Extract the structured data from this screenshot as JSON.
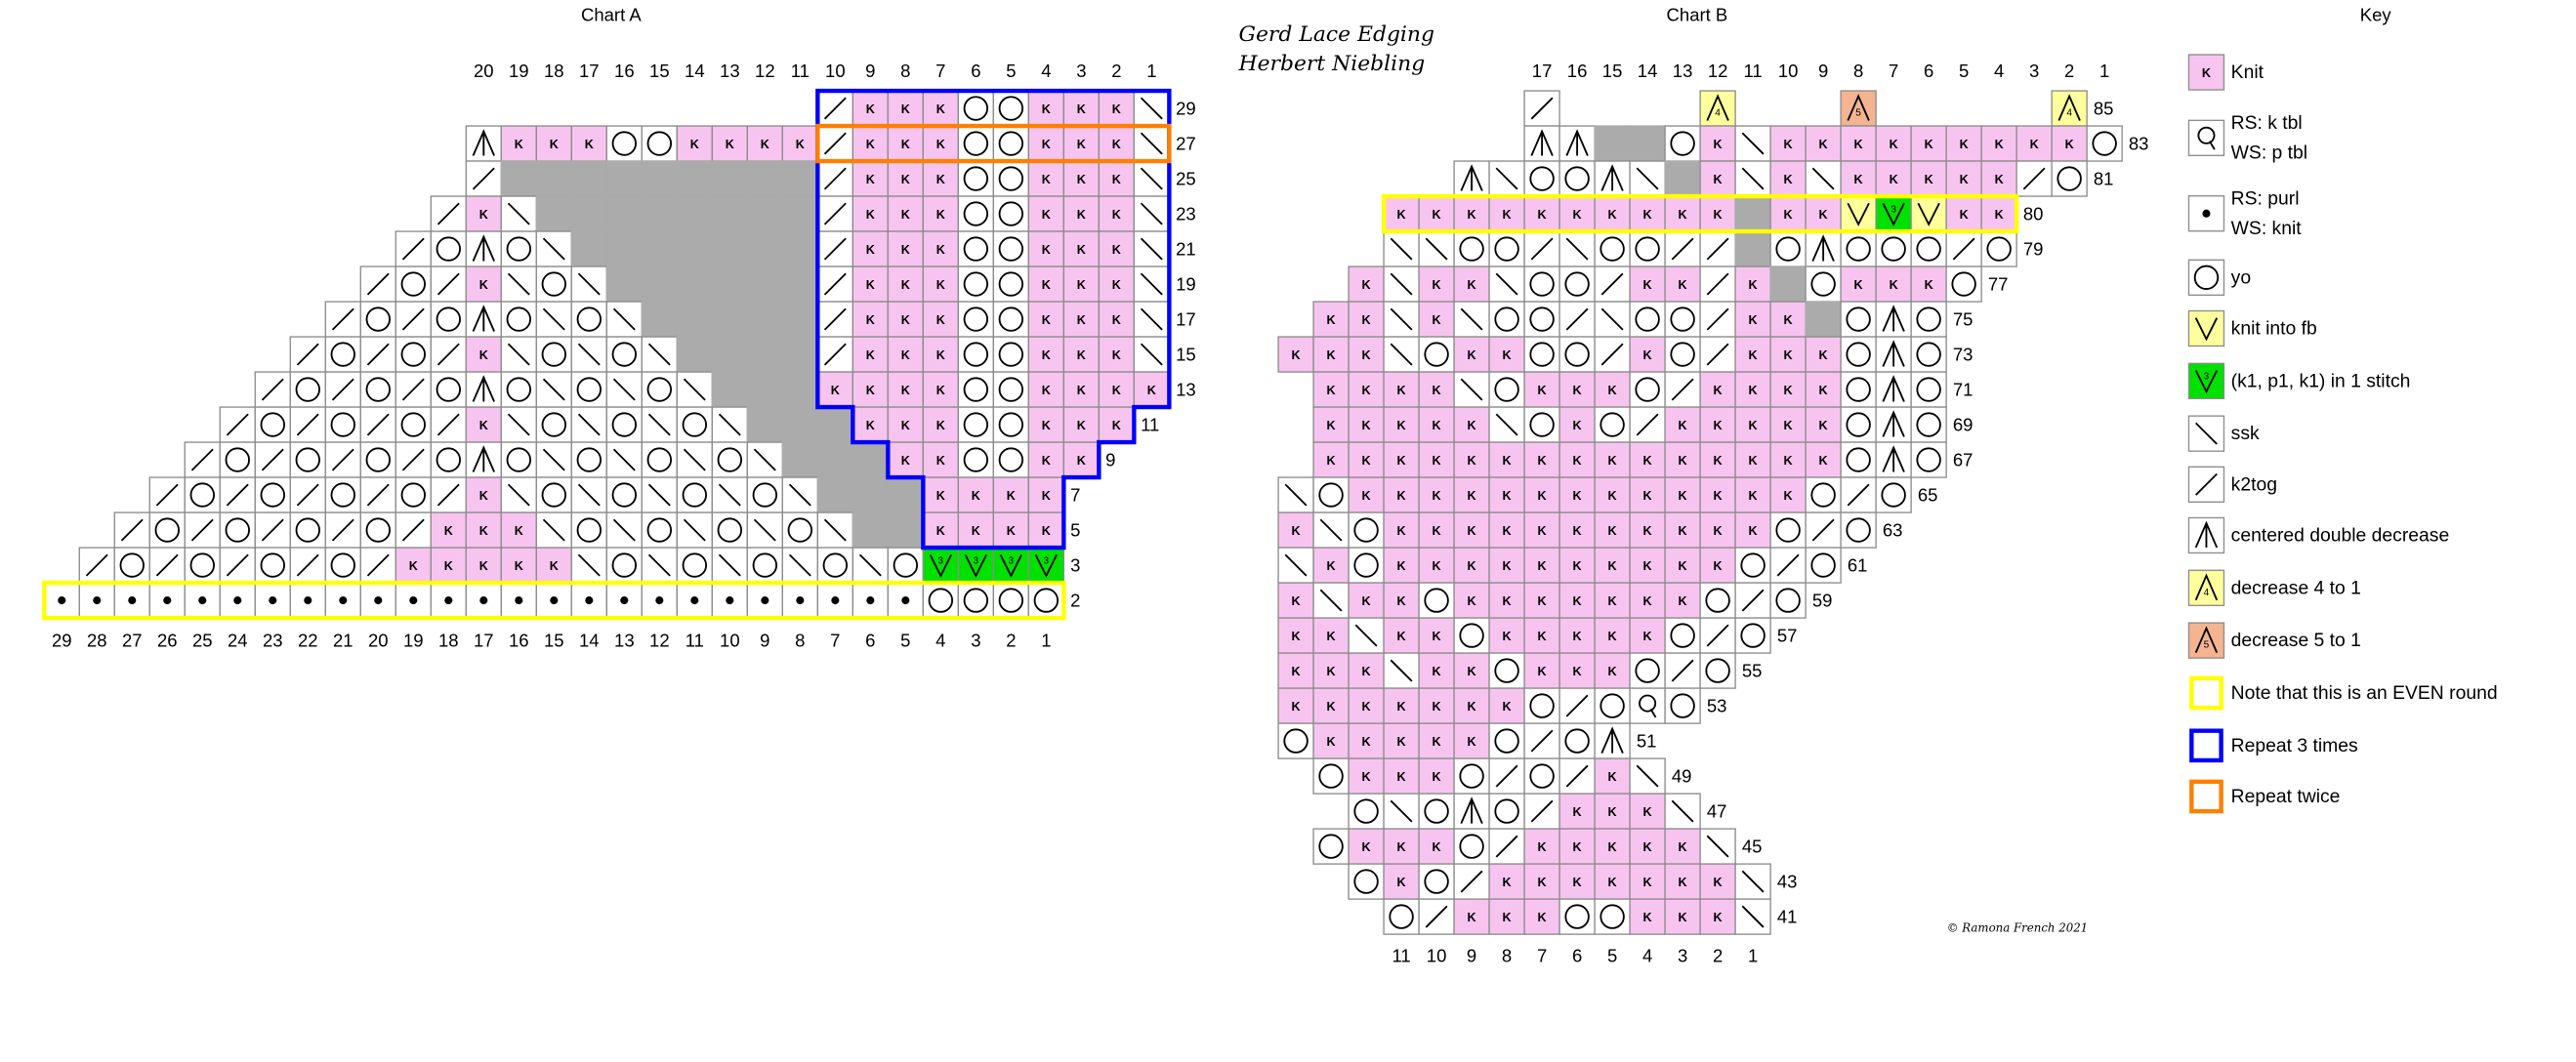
{
  "title_lines": [
    "Gerd Lace Edging",
    "Herbert Niebling"
  ],
  "copyright": "© Ramona French 2021",
  "chart_a": {
    "title": "Chart A",
    "top_columns": [
      1,
      2,
      3,
      4,
      5,
      6,
      7,
      8,
      9,
      10,
      11,
      12,
      13,
      14,
      15,
      16,
      17,
      18,
      19,
      20
    ],
    "bottom_columns": [
      1,
      2,
      3,
      4,
      5,
      6,
      7,
      8,
      9,
      10,
      11,
      12,
      13,
      14,
      15,
      16,
      17,
      18,
      19,
      20,
      21,
      22,
      23,
      24,
      25,
      26,
      27,
      28,
      29
    ],
    "rows": [
      {
        "label": 29,
        "cells": [
          "t",
          "K",
          "K",
          "K",
          "O",
          "O",
          "K",
          "K",
          "K",
          "s"
        ]
      },
      {
        "label": 27,
        "cells": [
          "A",
          "K",
          "K",
          "K",
          "O",
          "O",
          "K",
          "K",
          "K",
          "K",
          "t",
          "K",
          "K",
          "K",
          "O",
          "O",
          "K",
          "K",
          "K",
          "s"
        ]
      },
      {
        "label": 25,
        "cells": [
          "t",
          "g",
          "g",
          "g",
          "g",
          "g",
          "g",
          "g",
          "g",
          "g",
          "t",
          "K",
          "K",
          "K",
          "O",
          "O",
          "K",
          "K",
          "K",
          "s"
        ]
      },
      {
        "label": 23,
        "cells": [
          "t",
          "K",
          "s",
          "g",
          "g",
          "g",
          "g",
          "g",
          "g",
          "g",
          "g",
          "t",
          "K",
          "K",
          "K",
          "O",
          "O",
          "K",
          "K",
          "K",
          "s"
        ]
      },
      {
        "label": 21,
        "cells": [
          "t",
          "O",
          "A",
          "O",
          "s",
          "g",
          "g",
          "g",
          "g",
          "g",
          "g",
          "g",
          "t",
          "K",
          "K",
          "K",
          "O",
          "O",
          "K",
          "K",
          "K",
          "s"
        ]
      },
      {
        "label": 19,
        "cells": [
          "t",
          "O",
          "t",
          "K",
          "s",
          "O",
          "s",
          "g",
          "g",
          "g",
          "g",
          "g",
          "g",
          "t",
          "K",
          "K",
          "K",
          "O",
          "O",
          "K",
          "K",
          "K",
          "s"
        ]
      },
      {
        "label": 17,
        "cells": [
          "t",
          "O",
          "t",
          "O",
          "A",
          "O",
          "s",
          "O",
          "s",
          "g",
          "g",
          "g",
          "g",
          "g",
          "t",
          "K",
          "K",
          "K",
          "O",
          "O",
          "K",
          "K",
          "K",
          "s"
        ]
      },
      {
        "label": 15,
        "cells": [
          "t",
          "O",
          "t",
          "O",
          "t",
          "K",
          "s",
          "O",
          "s",
          "O",
          "s",
          "g",
          "g",
          "g",
          "g",
          "t",
          "K",
          "K",
          "K",
          "O",
          "O",
          "K",
          "K",
          "K",
          "s"
        ]
      },
      {
        "label": 13,
        "cells": [
          "t",
          "O",
          "t",
          "O",
          "t",
          "O",
          "A",
          "O",
          "s",
          "O",
          "s",
          "O",
          "s",
          "g",
          "g",
          "g",
          "K",
          "K",
          "K",
          "K",
          "O",
          "O",
          "K",
          "K",
          "K",
          "K"
        ]
      },
      {
        "label": 11,
        "cells": [
          "t",
          "O",
          "t",
          "O",
          "t",
          "O",
          "t",
          "K",
          "s",
          "O",
          "s",
          "O",
          "s",
          "O",
          "s",
          "g",
          "g",
          "g",
          "K",
          "K",
          "K",
          "O",
          "O",
          "K",
          "K",
          "K",
          null
        ]
      },
      {
        "label": 9,
        "cells": [
          "t",
          "O",
          "t",
          "O",
          "t",
          "O",
          "t",
          "O",
          "A",
          "O",
          "s",
          "O",
          "s",
          "O",
          "s",
          "O",
          "s",
          "g",
          "g",
          "g",
          "K",
          "K",
          "O",
          "O",
          "K",
          "K",
          null,
          null
        ]
      },
      {
        "label": 7,
        "cells": [
          "t",
          "O",
          "t",
          "O",
          "t",
          "O",
          "t",
          "O",
          "t",
          "K",
          "s",
          "O",
          "s",
          "O",
          "s",
          "O",
          "s",
          "O",
          "s",
          "g",
          "g",
          "g",
          "K",
          "K",
          "K",
          "K",
          null,
          null,
          null
        ]
      },
      {
        "label": 5,
        "cells": [
          "t",
          "O",
          "t",
          "O",
          "t",
          "O",
          "t",
          "O",
          "t",
          "K",
          "K",
          "K",
          "s",
          "O",
          "s",
          "O",
          "s",
          "O",
          "s",
          "O",
          "s",
          "g",
          "g",
          "K",
          "K",
          "K",
          "K",
          null,
          null,
          null
        ]
      },
      {
        "label": 3,
        "cells": [
          "t",
          "O",
          "t",
          "O",
          "t",
          "O",
          "t",
          "O",
          "t",
          "K",
          "K",
          "K",
          "K",
          "K",
          "s",
          "O",
          "s",
          "O",
          "s",
          "O",
          "s",
          "O",
          "s",
          "O",
          "3",
          "3",
          "3",
          "3",
          null,
          null,
          null
        ]
      },
      {
        "label": 2,
        "cells": [
          "p",
          "p",
          "p",
          "p",
          "p",
          "p",
          "p",
          "p",
          "p",
          "p",
          "p",
          "p",
          "p",
          "p",
          "p",
          "p",
          "p",
          "p",
          "p",
          "p",
          "p",
          "p",
          "p",
          "p",
          "p",
          "O",
          "O",
          "O",
          "O",
          null,
          null,
          null
        ]
      }
    ]
  },
  "chart_b": {
    "title": "Chart B",
    "top_columns": [
      1,
      2,
      3,
      4,
      5,
      6,
      7,
      8,
      9,
      10,
      11,
      12,
      13,
      14,
      15,
      16,
      17
    ],
    "bottom_columns": [
      1,
      2,
      3,
      4,
      5,
      6,
      7,
      8,
      9,
      10,
      11
    ],
    "rows": [
      {
        "label": 85,
        "cells": [
          "t",
          null,
          null,
          null,
          null,
          "4",
          null,
          null,
          null,
          "5",
          null,
          null,
          null,
          null,
          null,
          "4",
          null
        ]
      },
      {
        "label": 83,
        "cells": [
          "A",
          "A",
          "g",
          "g",
          "O",
          "K",
          "s",
          "K",
          "K",
          "K",
          "K",
          "K",
          "K",
          "K",
          "K",
          "K",
          "O"
        ]
      },
      {
        "label": 81,
        "cells": [
          "A",
          "s",
          "O",
          "O",
          "A",
          "s",
          "g",
          "K",
          "s",
          "K",
          "s",
          "K",
          "K",
          "K",
          "K",
          "K",
          "t",
          "O",
          null
        ]
      },
      {
        "label": 80,
        "cells": [
          "K",
          "K",
          "K",
          "K",
          "K",
          "K",
          "K",
          "K",
          "K",
          "K",
          "g",
          "K",
          "K",
          "v",
          "3",
          "v",
          "K",
          "K",
          null,
          null,
          null
        ]
      },
      {
        "label": 79,
        "cells": [
          "s",
          "s",
          "O",
          "O",
          "t",
          "s",
          "O",
          "O",
          "t",
          "t",
          "g",
          "O",
          "A",
          "O",
          "O",
          "O",
          "t",
          "O",
          null,
          null,
          null
        ]
      },
      {
        "label": 77,
        "cells": [
          "K",
          "s",
          "K",
          "K",
          "s",
          "O",
          "O",
          "t",
          "K",
          "K",
          "t",
          "K",
          "g",
          "O",
          "K",
          "K",
          "K",
          "O",
          null,
          null,
          null,
          null
        ]
      },
      {
        "label": 75,
        "cells": [
          "K",
          "K",
          "s",
          "K",
          "s",
          "O",
          "O",
          "t",
          "s",
          "O",
          "O",
          "t",
          "K",
          "K",
          "g",
          "O",
          "A",
          "O",
          null,
          null,
          null,
          null,
          null
        ]
      },
      {
        "label": 73,
        "cells": [
          "K",
          "K",
          "K",
          "s",
          "O",
          "K",
          "K",
          "O",
          "O",
          "t",
          "K",
          "O",
          "t",
          "K",
          "K",
          "K",
          "O",
          "A",
          "O",
          null,
          null,
          null,
          null,
          null
        ]
      },
      {
        "label": 71,
        "cells": [
          "K",
          "K",
          "K",
          "K",
          "s",
          "O",
          "K",
          "K",
          "K",
          "O",
          "t",
          "K",
          "K",
          "K",
          "K",
          "O",
          "A",
          "O",
          null,
          null,
          null,
          null,
          null
        ]
      },
      {
        "label": 69,
        "cells": [
          "K",
          "K",
          "K",
          "K",
          "K",
          "s",
          "O",
          "K",
          "O",
          "t",
          "K",
          "K",
          "K",
          "K",
          "K",
          "O",
          "A",
          "O",
          null,
          null,
          null,
          null,
          null
        ]
      },
      {
        "label": 67,
        "cells": [
          "K",
          "K",
          "K",
          "K",
          "K",
          "K",
          "K",
          "K",
          "K",
          "K",
          "K",
          "K",
          "K",
          "K",
          "K",
          "O",
          "A",
          "O",
          null,
          null,
          null,
          null,
          null
        ]
      },
      {
        "label": 65,
        "cells": [
          "s",
          "O",
          "K",
          "K",
          "K",
          "K",
          "K",
          "K",
          "K",
          "K",
          "K",
          "K",
          "K",
          "K",
          "K",
          "O",
          "t",
          "O",
          null,
          null,
          null,
          null,
          null,
          null
        ]
      },
      {
        "label": 63,
        "cells": [
          "K",
          "s",
          "O",
          "K",
          "K",
          "K",
          "K",
          "K",
          "K",
          "K",
          "K",
          "K",
          "K",
          "K",
          "O",
          "t",
          "O",
          null,
          null,
          null,
          null,
          null,
          null,
          null
        ]
      },
      {
        "label": 61,
        "cells": [
          "s",
          "K",
          "O",
          "K",
          "K",
          "K",
          "K",
          "K",
          "K",
          "K",
          "K",
          "K",
          "K",
          "O",
          "t",
          "O",
          null,
          null,
          null,
          null,
          null,
          null,
          null,
          null
        ]
      },
      {
        "label": 59,
        "cells": [
          "K",
          "s",
          "K",
          "K",
          "O",
          "K",
          "K",
          "K",
          "K",
          "K",
          "K",
          "K",
          "O",
          "t",
          "O",
          null,
          null,
          null,
          null,
          null,
          null,
          null,
          null,
          null
        ]
      },
      {
        "label": 57,
        "cells": [
          "K",
          "K",
          "s",
          "K",
          "K",
          "O",
          "K",
          "K",
          "K",
          "K",
          "K",
          "O",
          "t",
          "O",
          null,
          null,
          null,
          null,
          null,
          null,
          null,
          null,
          null,
          null
        ]
      },
      {
        "label": 55,
        "cells": [
          "K",
          "K",
          "K",
          "s",
          "K",
          "K",
          "O",
          "K",
          "K",
          "K",
          "O",
          "t",
          "O",
          null,
          null,
          null,
          null,
          null,
          null,
          null,
          null,
          null,
          null,
          null
        ]
      },
      {
        "label": 53,
        "cells": [
          "K",
          "K",
          "K",
          "K",
          "K",
          "K",
          "K",
          "O",
          "t",
          "O",
          "q",
          "O",
          null,
          null,
          null,
          null,
          null,
          null,
          null,
          null,
          null,
          null,
          null,
          null
        ]
      },
      {
        "label": 51,
        "cells": [
          "O",
          "K",
          "K",
          "K",
          "K",
          "K",
          "O",
          "t",
          "O",
          "A",
          null,
          null,
          null,
          null,
          null,
          null,
          null,
          null,
          null,
          null,
          null,
          null,
          null,
          null
        ]
      },
      {
        "label": 49,
        "cells": [
          "O",
          "K",
          "K",
          "K",
          "O",
          "t",
          "O",
          "t",
          "K",
          "s",
          null,
          null,
          null,
          null,
          null,
          null,
          null,
          null,
          null,
          null,
          null,
          null,
          null
        ]
      },
      {
        "label": 47,
        "cells": [
          "O",
          "s",
          "O",
          "A",
          "O",
          "t",
          "K",
          "K",
          "K",
          "s",
          null,
          null,
          null,
          null,
          null,
          null,
          null,
          null,
          null,
          null,
          null,
          null
        ]
      },
      {
        "label": 45,
        "cells": [
          "O",
          "K",
          "K",
          "K",
          "O",
          "t",
          "K",
          "K",
          "K",
          "K",
          "K",
          "s",
          null,
          null,
          null,
          null,
          null,
          null,
          null,
          null,
          null,
          null,
          null
        ]
      },
      {
        "label": 43,
        "cells": [
          "O",
          "K",
          "O",
          "t",
          "K",
          "K",
          "K",
          "K",
          "K",
          "K",
          "K",
          "s",
          null,
          null,
          null,
          null,
          null,
          null,
          null,
          null,
          null,
          null
        ]
      },
      {
        "label": 41,
        "cells": [
          "O",
          "t",
          "K",
          "K",
          "K",
          "O",
          "O",
          "K",
          "K",
          "K",
          "s",
          null,
          null,
          null,
          null,
          null,
          null,
          null,
          null,
          null,
          null
        ]
      }
    ]
  },
  "key": {
    "title": "Key",
    "items": [
      {
        "symbol": "K",
        "lines": [
          "Knit"
        ]
      },
      {
        "symbol": "q",
        "lines": [
          "RS: k tbl",
          "WS: p tbl"
        ]
      },
      {
        "symbol": "p",
        "lines": [
          "RS: purl",
          "WS: knit"
        ]
      },
      {
        "symbol": "O",
        "lines": [
          "yo"
        ]
      },
      {
        "symbol": "v",
        "lines": [
          "knit into fb"
        ]
      },
      {
        "symbol": "3",
        "lines": [
          "(k1, p1, k1) in 1 stitch"
        ]
      },
      {
        "symbol": "s",
        "lines": [
          "ssk"
        ]
      },
      {
        "symbol": "t",
        "lines": [
          "k2tog"
        ]
      },
      {
        "symbol": "A",
        "lines": [
          "centered double decrease"
        ]
      },
      {
        "symbol": "4",
        "lines": [
          "decrease 4 to 1"
        ]
      },
      {
        "symbol": "5",
        "lines": [
          "decrease 5 to 1"
        ]
      },
      {
        "outline": "#ffff00",
        "lines": [
          "Note that this is an EVEN round"
        ]
      },
      {
        "outline": "#0000ff",
        "lines": [
          "Repeat 3 times"
        ]
      },
      {
        "outline": "#ff7f00",
        "lines": [
          "Repeat twice"
        ]
      }
    ]
  }
}
